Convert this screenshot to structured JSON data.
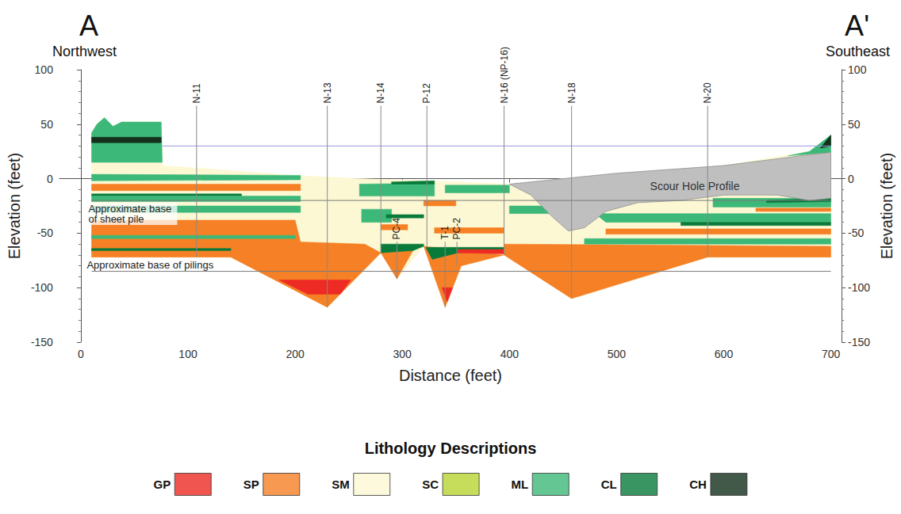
{
  "chart_data": {
    "type": "cross_section",
    "title_left": "A",
    "subtitle_left": "Northwest",
    "title_right": "A'",
    "subtitle_right": "Southeast",
    "x_label": "Distance (feet)",
    "y_label": "Elevation (feet)",
    "y2_label": "Elevation (feet)",
    "xlim": [
      -20,
      710
    ],
    "xticks": [
      0,
      100,
      200,
      300,
      400,
      500,
      600,
      700
    ],
    "ylim": [
      -150,
      100
    ],
    "yticks": [
      -150,
      -100,
      -50,
      0,
      50,
      100
    ],
    "y2lim": [
      -150,
      100
    ],
    "y2ticks": [
      -150,
      -100,
      -50,
      0,
      50,
      100
    ],
    "grid": false,
    "legend": "bottom",
    "legend_title": "Lithology Descriptions",
    "lithologies": [
      {
        "name": "GP",
        "color": "#ee2a24"
      },
      {
        "name": "SP",
        "color": "#f58025"
      },
      {
        "name": "SM",
        "color": "#fcf8d4"
      },
      {
        "name": "SC",
        "color": "#b8d432"
      },
      {
        "name": "ML",
        "color": "#3cb878"
      },
      {
        "name": "CL",
        "color": "#087a3a"
      },
      {
        "name": "CH",
        "color": "#13301c"
      }
    ],
    "units": [
      {
        "lithology": "SM",
        "points": [
          [
            10,
            42
          ],
          [
            15,
            50
          ],
          [
            22,
            56
          ],
          [
            30,
            48
          ],
          [
            38,
            52
          ],
          [
            75,
            52
          ],
          [
            76,
            12
          ],
          [
            120,
            9
          ],
          [
            200,
            3
          ],
          [
            260,
            0
          ],
          [
            330,
            -2
          ],
          [
            400,
            -5
          ],
          [
            450,
            0
          ],
          [
            500,
            5
          ],
          [
            600,
            12
          ],
          [
            680,
            25
          ],
          [
            700,
            40
          ],
          [
            700,
            -72
          ],
          [
            585,
            -72
          ],
          [
            458,
            -110
          ],
          [
            395,
            -70
          ],
          [
            355,
            -80
          ],
          [
            340,
            -118
          ],
          [
            320,
            -62
          ],
          [
            295,
            -92
          ],
          [
            280,
            -68
          ],
          [
            230,
            -118
          ],
          [
            140,
            -72
          ],
          [
            10,
            -72
          ]
        ]
      },
      {
        "lithology": "SP",
        "points": [
          [
            10,
            -38
          ],
          [
            200,
            -38
          ],
          [
            205,
            -58
          ],
          [
            265,
            -60
          ],
          [
            280,
            -68
          ],
          [
            230,
            -118
          ],
          [
            140,
            -72
          ],
          [
            10,
            -72
          ]
        ]
      },
      {
        "lithology": "SP",
        "points": [
          [
            280,
            -68
          ],
          [
            310,
            -66
          ],
          [
            295,
            -92
          ]
        ]
      },
      {
        "lithology": "SP",
        "points": [
          [
            320,
            -62
          ],
          [
            395,
            -70
          ],
          [
            355,
            -80
          ],
          [
            340,
            -118
          ]
        ]
      },
      {
        "lithology": "SP",
        "points": [
          [
            395,
            -60
          ],
          [
            700,
            -62
          ],
          [
            700,
            -72
          ],
          [
            585,
            -72
          ],
          [
            458,
            -110
          ],
          [
            395,
            -70
          ]
        ]
      },
      {
        "lithology": "GP",
        "points": [
          [
            185,
            -93
          ],
          [
            252,
            -93
          ],
          [
            242,
            -106
          ],
          [
            212,
            -106
          ]
        ]
      },
      {
        "lithology": "GP",
        "points": [
          [
            337,
            -100
          ],
          [
            347,
            -100
          ],
          [
            342,
            -113
          ]
        ]
      },
      {
        "lithology": "CL",
        "points": [
          [
            322,
            -63
          ],
          [
            395,
            -63
          ],
          [
            395,
            -66
          ],
          [
            352,
            -68
          ],
          [
            328,
            -74
          ]
        ]
      },
      {
        "lithology": "GP",
        "points": [
          [
            352,
            -65
          ],
          [
            395,
            -65
          ],
          [
            395,
            -69
          ],
          [
            352,
            -68
          ]
        ]
      },
      {
        "lithology": "CL",
        "points": [
          [
            280,
            -60
          ],
          [
            320,
            -60
          ],
          [
            320,
            -62
          ],
          [
            310,
            -66
          ],
          [
            280,
            -68
          ]
        ]
      },
      {
        "lithology": "ML",
        "points": [
          [
            10,
            15
          ],
          [
            76,
            15
          ],
          [
            75,
            52
          ],
          [
            38,
            52
          ],
          [
            30,
            48
          ],
          [
            22,
            56
          ],
          [
            15,
            50
          ],
          [
            10,
            42
          ]
        ]
      },
      {
        "lithology": "CH",
        "points": [
          [
            10,
            33
          ],
          [
            75,
            33
          ],
          [
            75,
            38
          ],
          [
            10,
            38
          ]
        ]
      },
      {
        "lithology": "ML",
        "points": [
          [
            10,
            4
          ],
          [
            205,
            3
          ],
          [
            205,
            -1
          ],
          [
            10,
            -2
          ]
        ]
      },
      {
        "lithology": "SP",
        "points": [
          [
            10,
            -5
          ],
          [
            205,
            -5
          ],
          [
            205,
            -11
          ],
          [
            10,
            -11
          ]
        ]
      },
      {
        "lithology": "CL",
        "points": [
          [
            10,
            -14
          ],
          [
            150,
            -14
          ],
          [
            150,
            -16
          ],
          [
            10,
            -16
          ]
        ]
      },
      {
        "lithology": "ML",
        "points": [
          [
            10,
            -16
          ],
          [
            205,
            -16
          ],
          [
            205,
            -21
          ],
          [
            10,
            -21
          ]
        ]
      },
      {
        "lithology": "ML",
        "points": [
          [
            10,
            -25
          ],
          [
            205,
            -25
          ],
          [
            205,
            -31
          ],
          [
            10,
            -31
          ]
        ]
      },
      {
        "lithology": "ML",
        "points": [
          [
            10,
            -52
          ],
          [
            200,
            -52
          ],
          [
            200,
            -55
          ],
          [
            10,
            -55
          ]
        ]
      },
      {
        "lithology": "CL",
        "points": [
          [
            10,
            -64
          ],
          [
            140,
            -64
          ],
          [
            140,
            -66
          ],
          [
            10,
            -66
          ]
        ]
      },
      {
        "lithology": "ML",
        "points": [
          [
            260,
            -5
          ],
          [
            330,
            -4
          ],
          [
            330,
            -16
          ],
          [
            260,
            -16
          ]
        ]
      },
      {
        "lithology": "CL",
        "points": [
          [
            290,
            -3
          ],
          [
            330,
            -2
          ],
          [
            330,
            -5
          ],
          [
            290,
            -5
          ]
        ]
      },
      {
        "lithology": "ML",
        "points": [
          [
            340,
            -6
          ],
          [
            400,
            -6
          ],
          [
            400,
            -13
          ],
          [
            340,
            -13
          ]
        ]
      },
      {
        "lithology": "SP",
        "points": [
          [
            320,
            -20
          ],
          [
            350,
            -20
          ],
          [
            350,
            -25
          ],
          [
            320,
            -25
          ]
        ]
      },
      {
        "lithology": "ML",
        "points": [
          [
            262,
            -28
          ],
          [
            290,
            -28
          ],
          [
            290,
            -40
          ],
          [
            262,
            -40
          ]
        ]
      },
      {
        "lithology": "CL",
        "points": [
          [
            285,
            -33
          ],
          [
            320,
            -33
          ],
          [
            320,
            -36
          ],
          [
            285,
            -36
          ]
        ]
      },
      {
        "lithology": "SP",
        "points": [
          [
            280,
            -42
          ],
          [
            305,
            -42
          ],
          [
            305,
            -47
          ],
          [
            280,
            -47
          ]
        ]
      },
      {
        "lithology": "SP",
        "points": [
          [
            330,
            -45
          ],
          [
            395,
            -45
          ],
          [
            395,
            -50
          ],
          [
            330,
            -50
          ]
        ]
      },
      {
        "lithology": "ML",
        "points": [
          [
            400,
            -25
          ],
          [
            440,
            -25
          ],
          [
            440,
            -32
          ],
          [
            400,
            -32
          ]
        ]
      },
      {
        "lithology": "ML",
        "points": [
          [
            480,
            -32
          ],
          [
            700,
            -32
          ],
          [
            700,
            -40
          ],
          [
            490,
            -40
          ]
        ]
      },
      {
        "lithology": "CL",
        "points": [
          [
            560,
            -40
          ],
          [
            700,
            -40
          ],
          [
            700,
            -43
          ],
          [
            560,
            -43
          ]
        ]
      },
      {
        "lithology": "SP",
        "points": [
          [
            490,
            -46
          ],
          [
            700,
            -46
          ],
          [
            700,
            -51
          ],
          [
            490,
            -51
          ]
        ]
      },
      {
        "lithology": "ML",
        "points": [
          [
            470,
            -55
          ],
          [
            700,
            -55
          ],
          [
            700,
            -60
          ],
          [
            470,
            -60
          ]
        ]
      },
      {
        "lithology": "ML",
        "points": [
          [
            590,
            -18
          ],
          [
            700,
            -18
          ],
          [
            700,
            -26
          ],
          [
            590,
            -26
          ]
        ]
      },
      {
        "lithology": "SP",
        "points": [
          [
            630,
            -27
          ],
          [
            700,
            -27
          ],
          [
            700,
            -30
          ],
          [
            630,
            -30
          ]
        ]
      },
      {
        "lithology": "CL",
        "points": [
          [
            640,
            -20
          ],
          [
            700,
            -18
          ],
          [
            700,
            -21
          ],
          [
            640,
            -22
          ]
        ]
      },
      {
        "lithology": "ML",
        "points": [
          [
            660,
            21
          ],
          [
            680,
            25
          ],
          [
            700,
            40
          ],
          [
            700,
            24
          ]
        ]
      },
      {
        "lithology": "CH",
        "points": [
          [
            690,
            28
          ],
          [
            700,
            30
          ],
          [
            700,
            40
          ]
        ]
      }
    ],
    "scour_hole": {
      "label": "Scour Hole Profile",
      "color": "#bfbfbf",
      "label_at": [
        573,
        -7
      ],
      "points": [
        [
          400,
          -5
        ],
        [
          450,
          0
        ],
        [
          500,
          5
        ],
        [
          600,
          12
        ],
        [
          680,
          22
        ],
        [
          700,
          24
        ],
        [
          700,
          -18
        ],
        [
          680,
          -20
        ],
        [
          650,
          -15
        ],
        [
          600,
          -15
        ],
        [
          560,
          -20
        ],
        [
          520,
          -22
        ],
        [
          490,
          -30
        ],
        [
          470,
          -45
        ],
        [
          455,
          -48
        ],
        [
          440,
          -35
        ],
        [
          420,
          -15
        ]
      ]
    },
    "reference_lines": [
      {
        "y": 30,
        "x": [
          76,
          700
        ],
        "color": "#9999dd"
      },
      {
        "y": -20,
        "x": [
          10,
          700
        ],
        "color": "#7a7a7a",
        "label": "Approximate base of sheet pile"
      },
      {
        "y": -85,
        "x": [
          10,
          700
        ],
        "color": "#7a7a7a",
        "label": "Approximate base of pilings"
      }
    ],
    "boreholes": [
      {
        "name": "N-11",
        "x": 108,
        "top": 67,
        "bottom": -72
      },
      {
        "name": "N-13",
        "x": 230,
        "top": 67,
        "bottom": -118
      },
      {
        "name": "N-14",
        "x": 280,
        "top": 67,
        "bottom": -68
      },
      {
        "name": "P-12",
        "x": 323,
        "top": 67,
        "bottom": -62
      },
      {
        "name": "N-16 (NP-16)",
        "x": 395,
        "top": 67,
        "bottom": -70
      },
      {
        "name": "N-18",
        "x": 458,
        "top": 67,
        "bottom": -110
      },
      {
        "name": "N-20",
        "x": 585,
        "top": 67,
        "bottom": -72
      },
      {
        "name": "PC-4",
        "x": 295,
        "top": -58,
        "bottom": -92
      },
      {
        "name": "T-1",
        "x": 340,
        "top": -58,
        "bottom": -118
      },
      {
        "name": "PC-2",
        "x": 351,
        "top": -58,
        "bottom": -80
      }
    ]
  }
}
